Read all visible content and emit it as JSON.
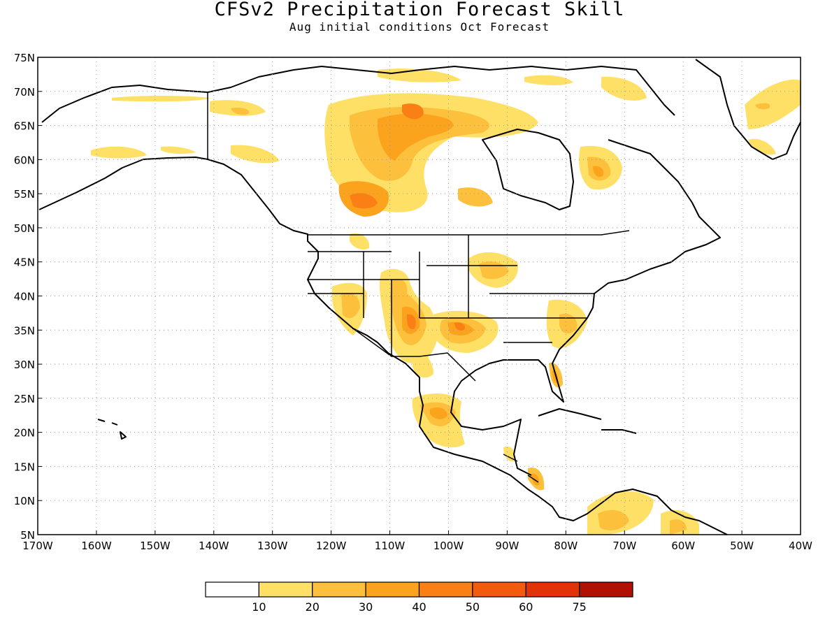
{
  "header": {
    "title": "CFSv2 Precipitation Forecast Skill",
    "subtitle": "Aug initial conditions  Oct Forecast"
  },
  "map": {
    "lon_range": [
      -170,
      -40
    ],
    "lat_range": [
      5,
      75
    ],
    "lon_labels": [
      "170W",
      "160W",
      "150W",
      "140W",
      "130W",
      "120W",
      "110W",
      "100W",
      "90W",
      "80W",
      "70W",
      "60W",
      "50W",
      "40W"
    ],
    "lat_labels": [
      "75N",
      "70N",
      "65N",
      "60N",
      "55N",
      "50N",
      "45N",
      "40N",
      "35N",
      "30N",
      "25N",
      "20N",
      "15N",
      "10N",
      "5N"
    ],
    "gridlines": "dotted"
  },
  "colorbar": {
    "colors": [
      "#ffffff",
      "#ffe066",
      "#fcc03c",
      "#fba31c",
      "#fa7f14",
      "#f45a0e",
      "#e23308",
      "#b31004"
    ],
    "labels": [
      "10",
      "20",
      "30",
      "40",
      "50",
      "60",
      "75"
    ]
  }
}
